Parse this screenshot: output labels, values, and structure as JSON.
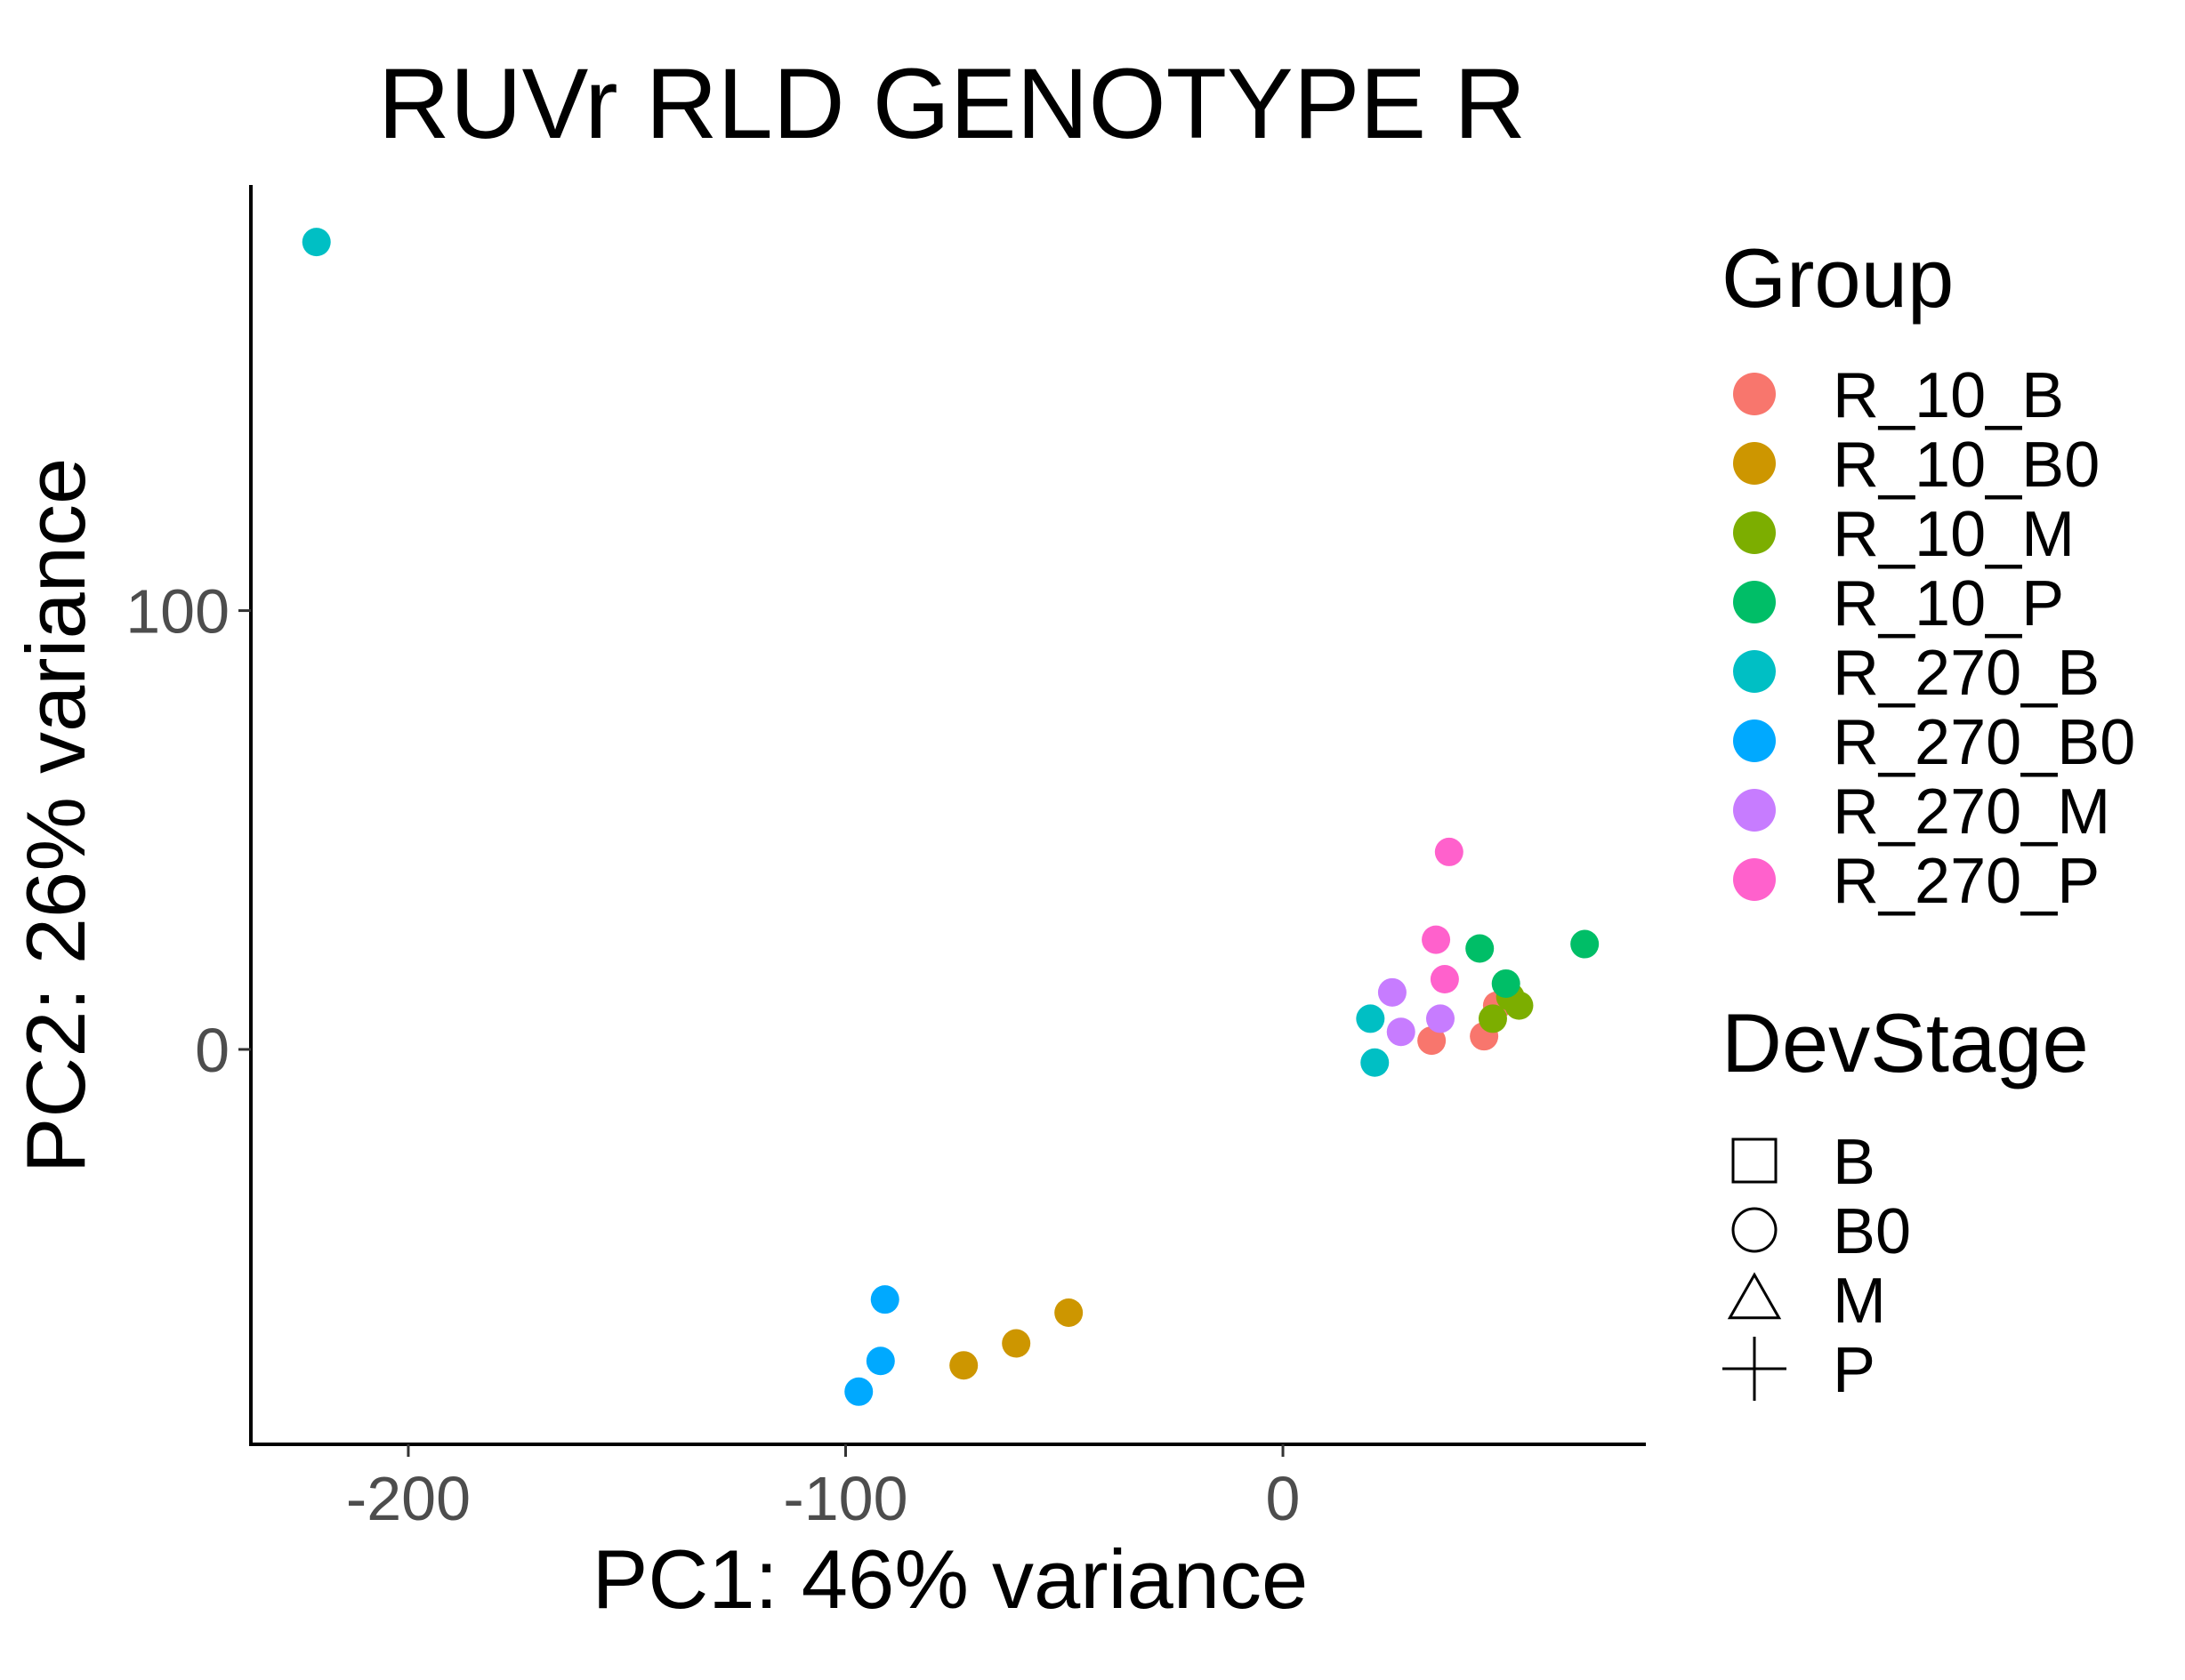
{
  "chart_data": {
    "type": "scatter",
    "title": "RUVr RLD GENOTYPE R",
    "xlabel": "PC1: 46% variance",
    "ylabel": "PC2: 26% variance",
    "xlim": [
      -236,
      83
    ],
    "ylim": [
      -90,
      197
    ],
    "xticks": [
      -200,
      -100,
      0
    ],
    "yticks": [
      0,
      100
    ],
    "xtick_labels": [
      "-200",
      "-100",
      "0"
    ],
    "ytick_labels": [
      "0",
      "100"
    ],
    "grid": false,
    "legend_position": "right",
    "group_legend": {
      "title": "Group",
      "entries": [
        {
          "label": "R_10_B",
          "color": "#F8766D"
        },
        {
          "label": "R_10_B0",
          "color": "#CD9600"
        },
        {
          "label": "R_10_M",
          "color": "#7CAE00"
        },
        {
          "label": "R_10_P",
          "color": "#00BE67"
        },
        {
          "label": "R_270_B",
          "color": "#00BFC4"
        },
        {
          "label": "R_270_B0",
          "color": "#00A9FF"
        },
        {
          "label": "R_270_M",
          "color": "#C77CFF"
        },
        {
          "label": "R_270_P",
          "color": "#FF61CC"
        }
      ]
    },
    "shape_legend": {
      "title": "DevStage",
      "entries": [
        {
          "label": "B",
          "shape": "square"
        },
        {
          "label": "B0",
          "shape": "circle"
        },
        {
          "label": "M",
          "shape": "triangle"
        },
        {
          "label": "P",
          "shape": "plus"
        }
      ]
    },
    "points": [
      {
        "x": -221,
        "y": 184,
        "group": "R_270_B",
        "stage": "B"
      },
      {
        "x": 20,
        "y": 7,
        "group": "R_270_B",
        "stage": "B"
      },
      {
        "x": 21,
        "y": -3,
        "group": "R_270_B",
        "stage": "B"
      },
      {
        "x": 34,
        "y": 2,
        "group": "R_10_B",
        "stage": "B"
      },
      {
        "x": 46,
        "y": 3,
        "group": "R_10_B",
        "stage": "B"
      },
      {
        "x": 49,
        "y": 10,
        "group": "R_10_B",
        "stage": "B"
      },
      {
        "x": -91,
        "y": -57,
        "group": "R_270_B0",
        "stage": "B0"
      },
      {
        "x": -92,
        "y": -71,
        "group": "R_270_B0",
        "stage": "B0"
      },
      {
        "x": -97,
        "y": -78,
        "group": "R_270_B0",
        "stage": "B0"
      },
      {
        "x": -73,
        "y": -72,
        "group": "R_10_B0",
        "stage": "B0"
      },
      {
        "x": -61,
        "y": -67,
        "group": "R_10_B0",
        "stage": "B0"
      },
      {
        "x": -49,
        "y": -60,
        "group": "R_10_B0",
        "stage": "B0"
      },
      {
        "x": 48,
        "y": 7,
        "group": "R_10_M",
        "stage": "M"
      },
      {
        "x": 52,
        "y": 12,
        "group": "R_10_M",
        "stage": "M"
      },
      {
        "x": 54,
        "y": 10,
        "group": "R_10_M",
        "stage": "M"
      },
      {
        "x": 25,
        "y": 13,
        "group": "R_270_M",
        "stage": "M"
      },
      {
        "x": 27,
        "y": 4,
        "group": "R_270_M",
        "stage": "M"
      },
      {
        "x": 36,
        "y": 7,
        "group": "R_270_M",
        "stage": "M"
      },
      {
        "x": 45,
        "y": 23,
        "group": "R_10_P",
        "stage": "P"
      },
      {
        "x": 51,
        "y": 15,
        "group": "R_10_P",
        "stage": "P"
      },
      {
        "x": 69,
        "y": 24,
        "group": "R_10_P",
        "stage": "P"
      },
      {
        "x": 38,
        "y": 45,
        "group": "R_270_P",
        "stage": "P"
      },
      {
        "x": 35,
        "y": 25,
        "group": "R_270_P",
        "stage": "P"
      },
      {
        "x": 37,
        "y": 16,
        "group": "R_270_P",
        "stage": "P"
      }
    ]
  }
}
